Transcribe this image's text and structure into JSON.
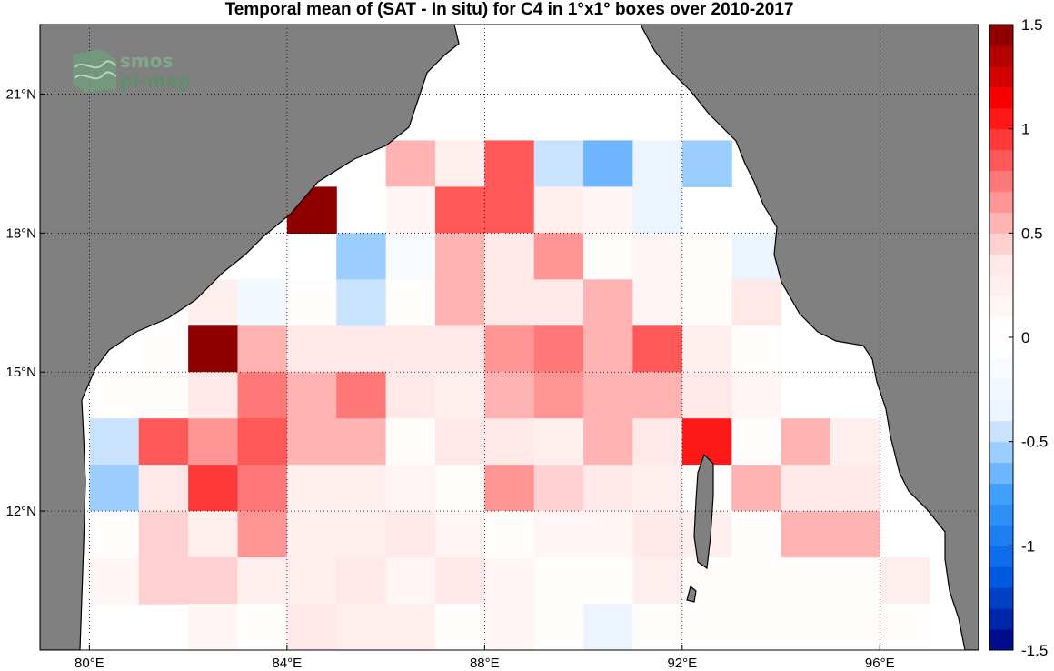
{
  "title": "Temporal mean of (SAT - In situ) for C4 in 1°x1° boxes over 2010-2017",
  "logo": {
    "line1": "smos",
    "line2": "pi-mep"
  },
  "axes": {
    "lon_ticks": [
      {
        "value": 80,
        "label": "80°E"
      },
      {
        "value": 84,
        "label": "84°E"
      },
      {
        "value": 88,
        "label": "88°E"
      },
      {
        "value": 92,
        "label": "92°E"
      },
      {
        "value": 96,
        "label": "96°E"
      }
    ],
    "lat_ticks": [
      {
        "value": 12,
        "label": "12°N"
      },
      {
        "value": 15,
        "label": "15°N"
      },
      {
        "value": 18,
        "label": "18°N"
      },
      {
        "value": 21,
        "label": "21°N"
      }
    ],
    "lon_range": [
      79,
      98
    ],
    "lat_range": [
      9,
      22.5
    ]
  },
  "colors": {
    "land": "#808080",
    "ocean": "#ffffff",
    "coastline": "#000000"
  },
  "colorbar": {
    "min": -1.5,
    "max": 1.5,
    "labels": [
      {
        "value": 1.5,
        "label": "1.5"
      },
      {
        "value": 1,
        "label": "1"
      },
      {
        "value": 0.5,
        "label": "0.5"
      },
      {
        "value": 0,
        "label": "0"
      },
      {
        "value": -0.5,
        "label": "-0.5"
      },
      {
        "value": -1,
        "label": "-1"
      },
      {
        "value": -1.5,
        "label": "-1.5"
      }
    ]
  },
  "grid": {
    "lon_start": 79,
    "lat_start": 9,
    "n_cols": 19,
    "rows_from_top": [
      [
        null,
        null,
        null,
        null,
        null,
        null,
        null,
        null,
        null,
        null,
        null,
        null,
        null,
        null,
        null,
        null,
        null,
        null,
        null
      ],
      [
        null,
        null,
        null,
        null,
        null,
        null,
        null,
        null,
        null,
        null,
        null,
        null,
        null,
        null,
        null,
        null,
        null,
        null,
        null
      ],
      [
        null,
        null,
        null,
        null,
        null,
        null,
        null,
        0.5,
        0.25,
        0.9,
        -0.5,
        -0.7,
        -0.35,
        -0.6,
        null,
        null,
        null,
        null,
        null
      ],
      [
        null,
        null,
        null,
        null,
        null,
        1.45,
        null,
        0.15,
        0.9,
        0.9,
        0.25,
        0.1,
        -0.3,
        null,
        null,
        null,
        null,
        null,
        null
      ],
      [
        null,
        null,
        null,
        null,
        null,
        null,
        -0.6,
        -0.1,
        0.5,
        0.4,
        0.6,
        0,
        0.1,
        0,
        -0.3,
        null,
        null,
        null,
        null
      ],
      [
        null,
        null,
        null,
        0.2,
        -0.25,
        0,
        -0.5,
        0,
        0.5,
        0.4,
        0.4,
        0.5,
        0.1,
        0,
        0.3,
        null,
        null,
        null,
        null
      ],
      [
        null,
        null,
        0,
        1.45,
        0.5,
        0.4,
        0.4,
        0.4,
        0.3,
        0.6,
        0.75,
        0.5,
        0.9,
        0.25,
        0,
        null,
        null,
        null,
        null
      ],
      [
        null,
        0,
        0,
        0.4,
        0.8,
        0.5,
        0.7,
        0.4,
        0.25,
        0.5,
        0.6,
        0.5,
        0.5,
        0.4,
        0.1,
        null,
        null,
        null,
        null
      ],
      [
        null,
        -0.5,
        0.9,
        0.65,
        0.85,
        0.5,
        0.5,
        0,
        0.3,
        0.4,
        0.25,
        0.5,
        0.4,
        1.05,
        0,
        0.5,
        0.25,
        null,
        null
      ],
      [
        null,
        -0.6,
        0.35,
        0.95,
        0.8,
        0.25,
        0.25,
        0.1,
        0,
        0.6,
        0.45,
        0.4,
        0.25,
        0,
        0.5,
        0.4,
        0.4,
        null,
        null
      ],
      [
        null,
        0,
        0.45,
        0.25,
        0.6,
        0.25,
        0.25,
        0.3,
        0.1,
        0,
        0.1,
        0.1,
        0.4,
        0.25,
        0,
        0.5,
        0.5,
        null,
        null
      ],
      [
        null,
        0.1,
        0.45,
        0.45,
        0.25,
        0.25,
        0.3,
        0.1,
        0.35,
        0.1,
        0,
        0,
        0.25,
        0,
        0,
        0,
        0,
        0.25,
        null
      ],
      [
        null,
        null,
        null,
        0.1,
        0,
        0.4,
        0.25,
        0.25,
        0,
        0.1,
        0,
        -0.3,
        0,
        0,
        0,
        0,
        0,
        0,
        null
      ]
    ]
  }
}
